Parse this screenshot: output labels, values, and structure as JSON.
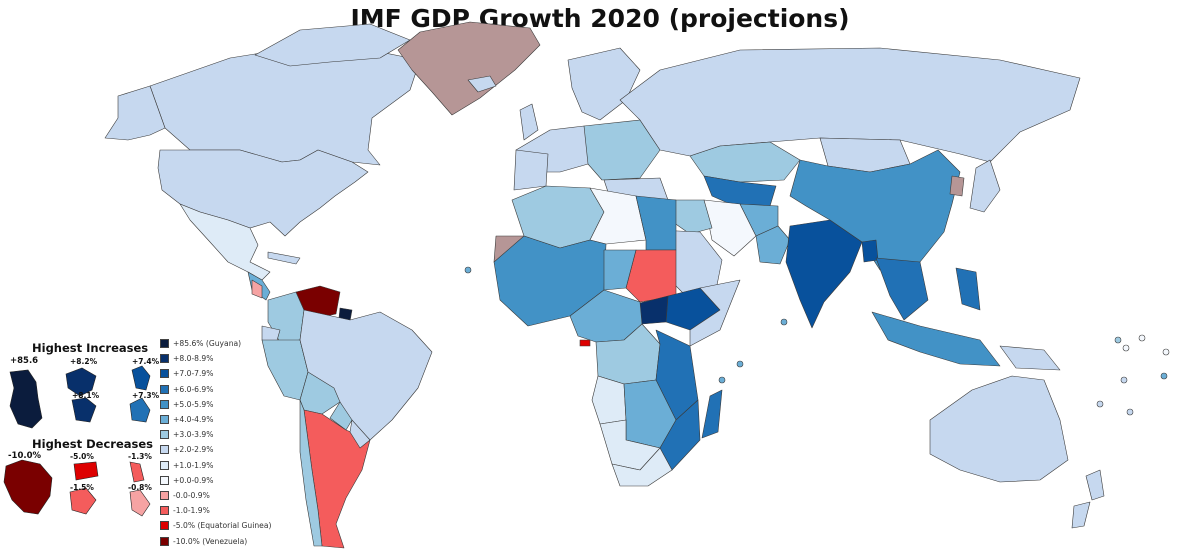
{
  "title": "IMF GDP Growth 2020 (projections)",
  "colors": {
    "ocean": "#ffffff",
    "no_data": "#b69696",
    "border": "#3a3a3a",
    "c85": "#0b1c3d",
    "c8": "#08306b",
    "c7": "#08519c",
    "c6": "#2171b5",
    "c5": "#4292c6",
    "c4": "#6baed6",
    "c3": "#9ecae1",
    "c2": "#c6d8ef",
    "c1": "#deebf7",
    "c0": "#f4f8fd",
    "n0": "#f6a3a3",
    "n1": "#f45c5c",
    "n5": "#dd0000",
    "n10": "#7a0000"
  },
  "panels": {
    "increases": {
      "heading": "Highest Increases",
      "values": [
        "+85.6",
        "+8.2%",
        "+7.4%",
        "+8.1%",
        "+7.3%"
      ]
    },
    "decreases": {
      "heading": "Highest Decreases",
      "values": [
        "-10.0%",
        "-5.0%",
        "-1.3%",
        "-1.5%",
        "-0.8%"
      ]
    }
  },
  "legend": [
    {
      "label": "+85.6% (Guyana)",
      "color": "#0b1c3d"
    },
    {
      "label": "+8.0-8.9%",
      "color": "#08306b"
    },
    {
      "label": "+7.0-7.9%",
      "color": "#08519c"
    },
    {
      "label": "+6.0-6.9%",
      "color": "#2171b5"
    },
    {
      "label": "+5.0-5.9%",
      "color": "#4292c6"
    },
    {
      "label": "+4.0-4.9%",
      "color": "#6baed6"
    },
    {
      "label": "+3.0-3.9%",
      "color": "#9ecae1"
    },
    {
      "label": "+2.0-2.9%",
      "color": "#c6d8ef"
    },
    {
      "label": "+1.0-1.9%",
      "color": "#deebf7"
    },
    {
      "label": "+0.0-0.9%",
      "color": "#f4f8fd"
    },
    {
      "label": "-0.0-0.9%",
      "color": "#f6a3a3"
    },
    {
      "label": "-1.0-1.9%",
      "color": "#f45c5c"
    },
    {
      "label": "-5.0% (Equatorial Guinea)",
      "color": "#dd0000"
    },
    {
      "label": "-10.0% (Venezuela)",
      "color": "#7a0000"
    }
  ]
}
